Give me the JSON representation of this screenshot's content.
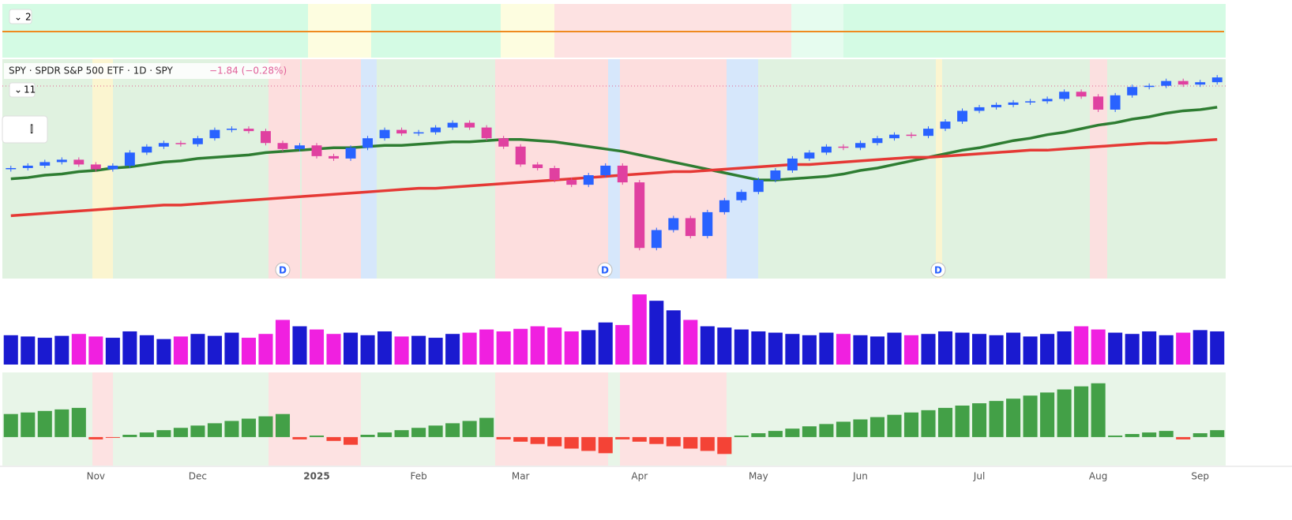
{
  "pane_badge": "2",
  "legend": {
    "title": "SPY · SPDR S&P 500 ETF · 1D · SPY",
    "change": "−1.84 (−0.28%)",
    "indicator_count": "11"
  },
  "dividend_markers": [
    "D",
    "D",
    "D"
  ],
  "chart_data": [
    {
      "type": "candlestick",
      "values": [
        572,
        574,
        577,
        579,
        575,
        571,
        574,
        585,
        590,
        593,
        592,
        597,
        604,
        605,
        603,
        593,
        588,
        591,
        582,
        580,
        589,
        597,
        604,
        601,
        602,
        606,
        610,
        606,
        597,
        590,
        575,
        572,
        562,
        558,
        566,
        574,
        560,
        505,
        520,
        530,
        515,
        535,
        545,
        552,
        562,
        570,
        580,
        585,
        590,
        589,
        593,
        597,
        600,
        599,
        605,
        611,
        620,
        623,
        625,
        627,
        628,
        630,
        636,
        632,
        621,
        633,
        640,
        641,
        645,
        642,
        644,
        648
      ],
      "up_color": "#2962ff",
      "down_color": "#e040a0",
      "series": [
        {
          "color": "#2e7d32",
          "values": [
            563,
            564,
            566,
            567,
            569,
            570,
            572,
            573,
            575,
            577,
            578,
            580,
            581,
            582,
            583,
            585,
            586,
            587,
            588,
            589,
            589,
            590,
            591,
            591,
            592,
            593,
            594,
            594,
            595,
            596,
            596,
            595,
            594,
            592,
            590,
            588,
            586,
            583,
            580,
            577,
            574,
            571,
            568,
            565,
            562,
            562,
            563,
            564,
            565,
            567,
            570,
            572,
            575,
            578,
            581,
            584,
            587,
            589,
            592,
            595,
            597,
            600,
            602,
            605,
            608,
            610,
            613,
            615,
            618,
            620,
            621,
            623
          ]
        },
        {
          "color": "#e53935",
          "values": [
            532,
            533,
            534,
            535,
            536,
            537,
            538,
            539,
            540,
            541,
            541,
            542,
            543,
            544,
            545,
            546,
            547,
            548,
            549,
            550,
            551,
            552,
            553,
            554,
            555,
            555,
            556,
            557,
            558,
            559,
            560,
            561,
            562,
            563,
            564,
            565,
            566,
            567,
            568,
            569,
            569,
            570,
            571,
            572,
            573,
            574,
            575,
            575,
            576,
            577,
            578,
            579,
            580,
            581,
            581,
            582,
            583,
            584,
            585,
            586,
            587,
            587,
            588,
            589,
            590,
            591,
            592,
            593,
            593,
            594,
            595,
            596
          ]
        }
      ],
      "ylim": [
        480,
        660
      ]
    },
    {
      "type": "volume",
      "values": [
        46,
        44,
        42,
        45,
        48,
        44,
        42,
        52,
        46,
        40,
        44,
        48,
        45,
        50,
        42,
        48,
        70,
        60,
        55,
        48,
        50,
        46,
        52,
        44,
        45,
        42,
        48,
        50,
        55,
        52,
        56,
        60,
        58,
        52,
        54,
        66,
        62,
        110,
        100,
        85,
        70,
        60,
        58,
        55,
        52,
        50,
        48,
        46,
        50,
        48,
        46,
        44,
        50,
        46,
        48,
        52,
        50,
        48,
        46,
        50,
        44,
        48,
        52,
        60,
        55,
        50,
        48,
        52,
        46,
        50,
        54,
        52
      ],
      "ylim": [
        0,
        120
      ]
    },
    {
      "type": "histogram",
      "values": [
        30,
        32,
        34,
        36,
        38,
        -3,
        -1,
        3,
        6,
        9,
        12,
        15,
        18,
        21,
        24,
        27,
        30,
        -3,
        2,
        -5,
        -10,
        3,
        6,
        9,
        12,
        15,
        18,
        21,
        25,
        -3,
        -6,
        -9,
        -12,
        -15,
        -18,
        -21,
        -3,
        -6,
        -9,
        -12,
        -15,
        -18,
        -22,
        2,
        5,
        8,
        11,
        14,
        17,
        20,
        23,
        26,
        29,
        32,
        35,
        38,
        41,
        44,
        47,
        50,
        54,
        58,
        62,
        66,
        70,
        2,
        4,
        6,
        8,
        -3,
        5,
        9
      ],
      "positive_color": "#43a047",
      "negative_color": "#f44336",
      "categories": [
        null,
        null,
        null,
        null,
        null,
        "Nov",
        null,
        null,
        null,
        null,
        null,
        "Dec",
        null,
        null,
        null,
        null,
        null,
        null,
        "2025",
        null,
        null,
        null,
        null,
        null,
        "Feb",
        null,
        null,
        null,
        null,
        null,
        "Mar",
        null,
        null,
        null,
        null,
        null,
        null,
        "Apr",
        null,
        null,
        null,
        null,
        null,
        null,
        "May",
        null,
        null,
        null,
        null,
        null,
        "Jun",
        null,
        null,
        null,
        null,
        null,
        null,
        "Jul",
        null,
        null,
        null,
        null,
        null,
        null,
        "Aug",
        null,
        null,
        null,
        null,
        null,
        "Sep",
        null
      ],
      "ylim": [
        -35,
        80
      ]
    }
  ]
}
